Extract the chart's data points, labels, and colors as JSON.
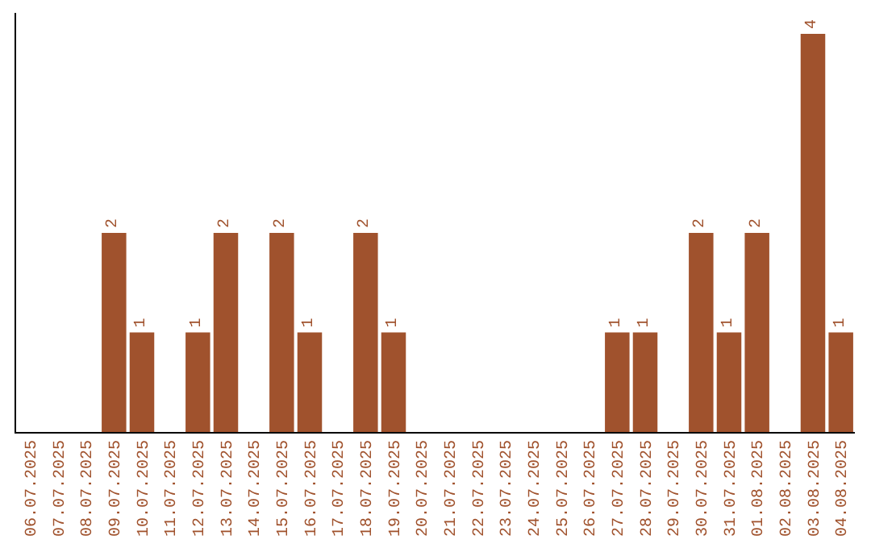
{
  "chart_data": {
    "type": "bar",
    "categories": [
      "06.07.2025",
      "07.07.2025",
      "08.07.2025",
      "09.07.2025",
      "10.07.2025",
      "11.07.2025",
      "12.07.2025",
      "13.07.2025",
      "14.07.2025",
      "15.07.2025",
      "16.07.2025",
      "17.07.2025",
      "18.07.2025",
      "19.07.2025",
      "20.07.2025",
      "21.07.2025",
      "22.07.2025",
      "23.07.2025",
      "24.07.2025",
      "25.07.2025",
      "26.07.2025",
      "27.07.2025",
      "28.07.2025",
      "29.07.2025",
      "30.07.2025",
      "31.07.2025",
      "01.08.2025",
      "02.08.2025",
      "03.08.2025",
      "04.08.2025"
    ],
    "values": [
      0,
      0,
      0,
      2,
      1,
      0,
      1,
      2,
      0,
      2,
      1,
      0,
      2,
      1,
      0,
      0,
      0,
      0,
      0,
      0,
      0,
      1,
      1,
      0,
      2,
      1,
      2,
      0,
      4,
      1
    ],
    "value_labels": [
      null,
      null,
      null,
      "2",
      "1",
      null,
      "1",
      "2",
      null,
      "2",
      "1",
      null,
      "2",
      "1",
      null,
      null,
      null,
      null,
      null,
      null,
      null,
      "1",
      "1",
      null,
      "2",
      "1",
      "2",
      null,
      "4",
      "1"
    ],
    "color": "#a0522d",
    "legend": false,
    "tick_labels": "x"
  }
}
